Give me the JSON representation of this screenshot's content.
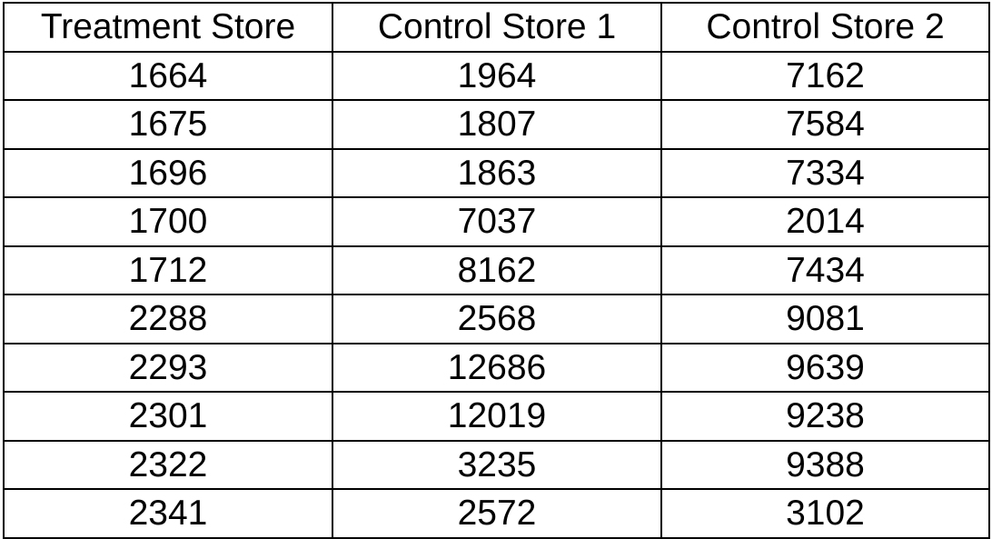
{
  "table": {
    "headers": [
      "Treatment Store",
      "Control Store 1",
      "Control Store 2"
    ],
    "rows": [
      [
        "1664",
        "1964",
        "7162"
      ],
      [
        "1675",
        "1807",
        "7584"
      ],
      [
        "1696",
        "1863",
        "7334"
      ],
      [
        "1700",
        "7037",
        "2014"
      ],
      [
        "1712",
        "8162",
        "7434"
      ],
      [
        "2288",
        "2568",
        "9081"
      ],
      [
        "2293",
        "12686",
        "9639"
      ],
      [
        "2301",
        "12019",
        "9238"
      ],
      [
        "2322",
        "3235",
        "9388"
      ],
      [
        "2341",
        "2572",
        "3102"
      ]
    ]
  },
  "colors": {
    "text": "#000000",
    "border": "#000000",
    "background": "#ffffff"
  }
}
